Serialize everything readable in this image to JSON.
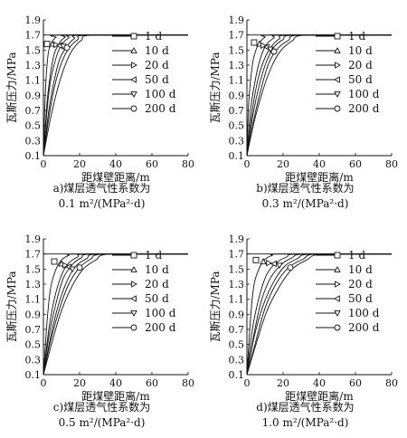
{
  "chart_data": [
    {
      "type": "line",
      "panel_label": "a)",
      "caption_line1": "煤层透气性系数为",
      "caption_line2": "0.1 m²/(MPa²·d)",
      "xlabel": "距煤壁距离/m",
      "ylabel": "瓦斯压力/MPa",
      "xlim": [
        0,
        80
      ],
      "ylim": [
        0.1,
        1.9
      ],
      "xticks": [
        "0",
        "20",
        "40",
        "60",
        "80"
      ],
      "yticks": [
        "0.1",
        "0.3",
        "0.5",
        "0.7",
        "0.9",
        "1.1",
        "1.3",
        "1.5",
        "1.7",
        "1.9"
      ],
      "legend_position": "right",
      "p_max": 1.7,
      "series": [
        {
          "name": "1 d",
          "marker": "square",
          "x": [
            0,
            1,
            2,
            3,
            5,
            7,
            10,
            80
          ],
          "y": [
            0.1,
            0.9,
            1.3,
            1.5,
            1.62,
            1.67,
            1.7,
            1.7
          ],
          "marker_at": [
            2,
            1.58
          ]
        },
        {
          "name": "10 d",
          "marker": "triangle-up",
          "x": [
            0,
            2,
            4,
            6,
            9,
            12,
            16,
            80
          ],
          "y": [
            0.1,
            0.8,
            1.2,
            1.45,
            1.6,
            1.67,
            1.7,
            1.7
          ],
          "marker_at": [
            5,
            1.58
          ]
        },
        {
          "name": "20 d",
          "marker": "triangle-right",
          "x": [
            0,
            2,
            4,
            7,
            10,
            14,
            19,
            80
          ],
          "y": [
            0.1,
            0.7,
            1.1,
            1.4,
            1.57,
            1.66,
            1.7,
            1.7
          ],
          "marker_at": [
            7,
            1.57
          ]
        },
        {
          "name": "50 d",
          "marker": "triangle-left",
          "x": [
            0,
            3,
            6,
            9,
            13,
            17,
            22,
            80
          ],
          "y": [
            0.1,
            0.7,
            1.1,
            1.38,
            1.55,
            1.65,
            1.7,
            1.7
          ],
          "marker_at": [
            9,
            1.56
          ]
        },
        {
          "name": "100 d",
          "marker": "triangle-down",
          "x": [
            0,
            3,
            6,
            10,
            14,
            19,
            25,
            80
          ],
          "y": [
            0.1,
            0.6,
            1.0,
            1.33,
            1.52,
            1.64,
            1.7,
            1.7
          ],
          "marker_at": [
            11,
            1.55
          ]
        },
        {
          "name": "200 d",
          "marker": "circle",
          "x": [
            0,
            4,
            8,
            12,
            16,
            21,
            28,
            80
          ],
          "y": [
            0.1,
            0.6,
            1.0,
            1.3,
            1.5,
            1.63,
            1.7,
            1.7
          ],
          "marker_at": [
            13,
            1.53
          ]
        }
      ]
    },
    {
      "type": "line",
      "panel_label": "b)",
      "caption_line1": "煤层透气性系数为",
      "caption_line2": "0.3 m²/(MPa²·d)",
      "xlabel": "距煤壁距离/m",
      "ylabel": "瓦斯压力/MPa",
      "xlim": [
        0,
        80
      ],
      "ylim": [
        0.1,
        1.9
      ],
      "xticks": [
        "0",
        "20",
        "40",
        "60",
        "80"
      ],
      "yticks": [
        "0.1",
        "0.3",
        "0.5",
        "0.7",
        "0.9",
        "1.1",
        "1.3",
        "1.5",
        "1.7",
        "1.9"
      ],
      "legend_position": "right",
      "p_max": 1.7,
      "series": [
        {
          "name": "1 d",
          "marker": "square",
          "x": [
            0,
            1,
            3,
            5,
            7,
            10,
            14,
            80
          ],
          "y": [
            0.1,
            0.8,
            1.3,
            1.5,
            1.6,
            1.67,
            1.7,
            1.7
          ],
          "marker_at": [
            4,
            1.6
          ]
        },
        {
          "name": "10 d",
          "marker": "triangle-up",
          "x": [
            0,
            2,
            5,
            8,
            11,
            15,
            20,
            80
          ],
          "y": [
            0.1,
            0.7,
            1.15,
            1.43,
            1.58,
            1.66,
            1.7,
            1.7
          ],
          "marker_at": [
            7,
            1.58
          ]
        },
        {
          "name": "20 d",
          "marker": "triangle-right",
          "x": [
            0,
            3,
            6,
            10,
            14,
            18,
            24,
            80
          ],
          "y": [
            0.1,
            0.7,
            1.1,
            1.4,
            1.56,
            1.65,
            1.7,
            1.7
          ],
          "marker_at": [
            9,
            1.56
          ]
        },
        {
          "name": "50 d",
          "marker": "triangle-left",
          "x": [
            0,
            3,
            7,
            11,
            15,
            20,
            27,
            80
          ],
          "y": [
            0.1,
            0.6,
            1.05,
            1.36,
            1.54,
            1.64,
            1.7,
            1.7
          ],
          "marker_at": [
            11,
            1.54
          ]
        },
        {
          "name": "100 d",
          "marker": "triangle-down",
          "x": [
            0,
            4,
            8,
            12,
            17,
            23,
            30,
            80
          ],
          "y": [
            0.1,
            0.6,
            1.0,
            1.32,
            1.52,
            1.63,
            1.7,
            1.7
          ],
          "marker_at": [
            13,
            1.51
          ]
        },
        {
          "name": "200 d",
          "marker": "circle",
          "x": [
            0,
            4,
            9,
            14,
            19,
            25,
            33,
            80
          ],
          "y": [
            0.1,
            0.55,
            0.98,
            1.3,
            1.5,
            1.62,
            1.7,
            1.7
          ],
          "marker_at": [
            15,
            1.48
          ]
        }
      ]
    },
    {
      "type": "line",
      "panel_label": "c)",
      "caption_line1": "煤层透气性系数为",
      "caption_line2": "0.5 m²/(MPa²·d)",
      "xlabel": "距煤壁距离/m",
      "ylabel": "瓦斯压力/MPa",
      "xlim": [
        0,
        80
      ],
      "ylim": [
        0.1,
        1.9
      ],
      "xticks": [
        "0",
        "20",
        "40",
        "60",
        "80"
      ],
      "yticks": [
        "0.1",
        "0.3",
        "0.5",
        "0.7",
        "0.9",
        "1.1",
        "1.3",
        "1.5",
        "1.7",
        "1.9"
      ],
      "legend_position": "right",
      "p_max": 1.7,
      "series": [
        {
          "name": "1 d",
          "marker": "square",
          "x": [
            0,
            2,
            4,
            7,
            10,
            14,
            19,
            80
          ],
          "y": [
            0.1,
            0.8,
            1.25,
            1.5,
            1.62,
            1.68,
            1.7,
            1.7
          ],
          "marker_at": [
            6,
            1.6
          ]
        },
        {
          "name": "10 d",
          "marker": "triangle-up",
          "x": [
            0,
            3,
            6,
            10,
            14,
            19,
            25,
            80
          ],
          "y": [
            0.1,
            0.7,
            1.1,
            1.42,
            1.58,
            1.66,
            1.7,
            1.7
          ],
          "marker_at": [
            10,
            1.57
          ]
        },
        {
          "name": "20 d",
          "marker": "triangle-right",
          "x": [
            0,
            3,
            7,
            11,
            16,
            21,
            28,
            80
          ],
          "y": [
            0.1,
            0.6,
            1.05,
            1.38,
            1.56,
            1.65,
            1.7,
            1.7
          ],
          "marker_at": [
            12,
            1.55
          ]
        },
        {
          "name": "50 d",
          "marker": "triangle-left",
          "x": [
            0,
            4,
            8,
            13,
            18,
            24,
            31,
            80
          ],
          "y": [
            0.1,
            0.6,
            1.0,
            1.34,
            1.54,
            1.64,
            1.7,
            1.7
          ],
          "marker_at": [
            14,
            1.53
          ]
        },
        {
          "name": "100 d",
          "marker": "triangle-down",
          "x": [
            0,
            4,
            9,
            14,
            20,
            26,
            34,
            80
          ],
          "y": [
            0.1,
            0.55,
            0.98,
            1.3,
            1.52,
            1.63,
            1.7,
            1.7
          ],
          "marker_at": [
            16,
            1.5
          ]
        },
        {
          "name": "200 d",
          "marker": "circle",
          "x": [
            0,
            5,
            10,
            16,
            22,
            29,
            37,
            80
          ],
          "y": [
            0.1,
            0.55,
            0.95,
            1.28,
            1.5,
            1.62,
            1.7,
            1.7
          ],
          "marker_at": [
            20,
            1.52
          ]
        }
      ]
    },
    {
      "type": "line",
      "panel_label": "d)",
      "caption_line1": "煤层透气性系数为",
      "caption_line2": "1.0 m²/(MPa²·d)",
      "xlabel": "距煤壁距离/m",
      "ylabel": "瓦斯压力/MPa",
      "xlim": [
        0,
        80
      ],
      "ylim": [
        0.1,
        1.9
      ],
      "xticks": [
        "0",
        "20",
        "40",
        "60",
        "80"
      ],
      "yticks": [
        "0.1",
        "0.3",
        "0.5",
        "0.7",
        "0.9",
        "1.1",
        "1.3",
        "1.5",
        "1.7",
        "1.9"
      ],
      "legend_position": "right",
      "p_max": 1.7,
      "series": [
        {
          "name": "1 d",
          "marker": "square",
          "x": [
            0,
            2,
            4,
            7,
            10,
            14,
            19,
            80
          ],
          "y": [
            0.1,
            0.85,
            1.3,
            1.52,
            1.63,
            1.68,
            1.7,
            1.7
          ],
          "marker_at": [
            5,
            1.62
          ]
        },
        {
          "name": "10 d",
          "marker": "triangle-up",
          "x": [
            0,
            3,
            7,
            11,
            16,
            22,
            29,
            80
          ],
          "y": [
            0.1,
            0.7,
            1.15,
            1.43,
            1.58,
            1.66,
            1.7,
            1.7
          ],
          "marker_at": [
            9,
            1.6
          ]
        },
        {
          "name": "20 d",
          "marker": "triangle-right",
          "x": [
            0,
            4,
            8,
            13,
            19,
            25,
            33,
            80
          ],
          "y": [
            0.1,
            0.65,
            1.08,
            1.38,
            1.56,
            1.65,
            1.7,
            1.7
          ],
          "marker_at": [
            12,
            1.58
          ]
        },
        {
          "name": "50 d",
          "marker": "triangle-left",
          "x": [
            0,
            4,
            9,
            15,
            21,
            28,
            36,
            80
          ],
          "y": [
            0.1,
            0.6,
            1.02,
            1.34,
            1.54,
            1.64,
            1.7,
            1.7
          ],
          "marker_at": [
            15,
            1.57
          ]
        },
        {
          "name": "100 d",
          "marker": "triangle-down",
          "x": [
            0,
            5,
            10,
            16,
            23,
            31,
            39,
            80
          ],
          "y": [
            0.1,
            0.55,
            0.98,
            1.3,
            1.52,
            1.63,
            1.7,
            1.7
          ],
          "marker_at": [
            18,
            1.55
          ]
        },
        {
          "name": "200 d",
          "marker": "circle",
          "x": [
            0,
            5,
            11,
            18,
            25,
            33,
            42,
            80
          ],
          "y": [
            0.1,
            0.5,
            0.94,
            1.27,
            1.5,
            1.62,
            1.7,
            1.7
          ],
          "marker_at": [
            24,
            1.52
          ]
        }
      ]
    }
  ]
}
